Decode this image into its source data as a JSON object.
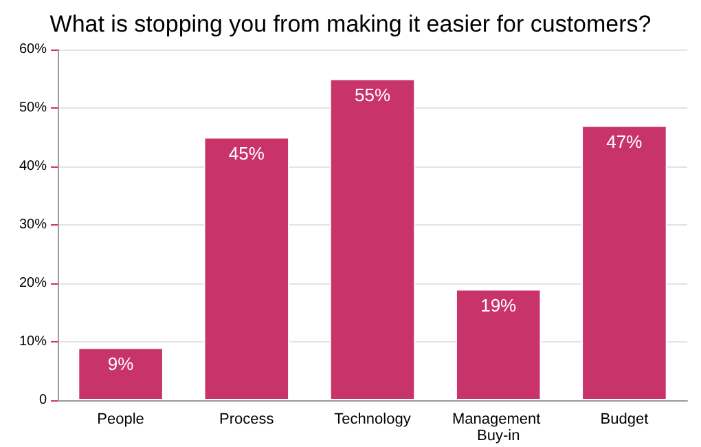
{
  "chart_data": {
    "type": "bar",
    "title": "What is stopping you from making it easier for customers?",
    "categories": [
      "People",
      "Process",
      "Technology",
      "Management Buy-in",
      "Budget"
    ],
    "values": [
      9,
      45,
      55,
      19,
      47
    ],
    "color": "#c8336a",
    "ylim": [
      0,
      60
    ],
    "yticks": [
      0,
      {
        "value": 10,
        "label": "10%"
      },
      {
        "value": 20,
        "label": "20%"
      },
      {
        "value": 30,
        "label": "30%"
      },
      {
        "value": 40,
        "label": "40%"
      },
      {
        "value": 50,
        "label": "50%"
      },
      {
        "value": 60,
        "label": "60%"
      }
    ],
    "grid": "y",
    "data_labels": true,
    "value_labels": [
      "9%",
      "45%",
      "55%",
      "19%",
      "47%"
    ]
  }
}
